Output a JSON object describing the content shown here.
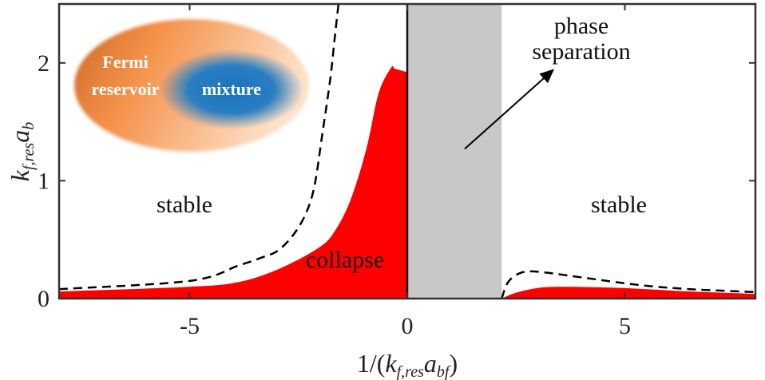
{
  "chart_data": {
    "type": "area",
    "xlabel_parts": [
      "1/(",
      "k",
      "f,res",
      "a",
      "bf",
      ")"
    ],
    "ylabel_parts": [
      "k",
      "f,res",
      "a",
      "b"
    ],
    "xlim": [
      -8,
      8
    ],
    "ylim": [
      0,
      2.5
    ],
    "xticks": [
      -5,
      0,
      5
    ],
    "xtick_labels": [
      "-5",
      "0",
      "5"
    ],
    "yticks": [
      0,
      1,
      2
    ],
    "ytick_labels": [
      "0",
      "1",
      "2"
    ],
    "grid": false,
    "colors": {
      "collapse": "#ff0000",
      "phase_separation": "#c8c8c8",
      "dashed": "#000000",
      "reservoir": "#f08a3c",
      "mixture": "#1f78c0"
    },
    "collapse_left": {
      "x": [
        -8,
        -5,
        -3.88,
        -2.96,
        -2.04,
        -1.67,
        -1.3,
        -0.94,
        -0.66,
        -0.37,
        -0.28,
        0
      ],
      "y": [
        0.06,
        0.1,
        0.14,
        0.25,
        0.43,
        0.57,
        0.84,
        1.27,
        1.74,
        1.96,
        1.95,
        1.92
      ]
    },
    "collapse_right": {
      "x": [
        2.17,
        2.5,
        3.0,
        3.5,
        4.5,
        5.5,
        6.5,
        8
      ],
      "y": [
        0,
        0.05,
        0.09,
        0.1,
        0.095,
        0.08,
        0.06,
        0.04
      ]
    },
    "dashed_left": {
      "x": [
        -8,
        -5,
        -3.88,
        -3.33,
        -2.96,
        -2.6,
        -2.32,
        -2.13,
        -1.95,
        -1.77,
        -1.67,
        -1.58
      ],
      "y": [
        0.08,
        0.15,
        0.28,
        0.35,
        0.41,
        0.55,
        0.73,
        0.96,
        1.4,
        1.86,
        2.2,
        2.5
      ]
    },
    "dashed_right": {
      "x": [
        2.17,
        2.3,
        2.5,
        2.76,
        3.2,
        4.0,
        5.33,
        6.5,
        8
      ],
      "y": [
        0,
        0.13,
        0.2,
        0.23,
        0.22,
        0.18,
        0.115,
        0.08,
        0.055
      ]
    },
    "phase_separation_band": [
      0,
      2.17
    ],
    "annotations": {
      "stable_left": "stable",
      "stable_right": "stable",
      "collapse": "collapse",
      "phase_line1": "phase",
      "phase_line2": "separation"
    },
    "arrow": {
      "from": [
        1.32,
        1.27
      ],
      "to": [
        3.35,
        1.94
      ]
    },
    "inset": {
      "outer_line1": "Fermi",
      "outer_line2": "reservoir",
      "inner": "mixture"
    }
  }
}
